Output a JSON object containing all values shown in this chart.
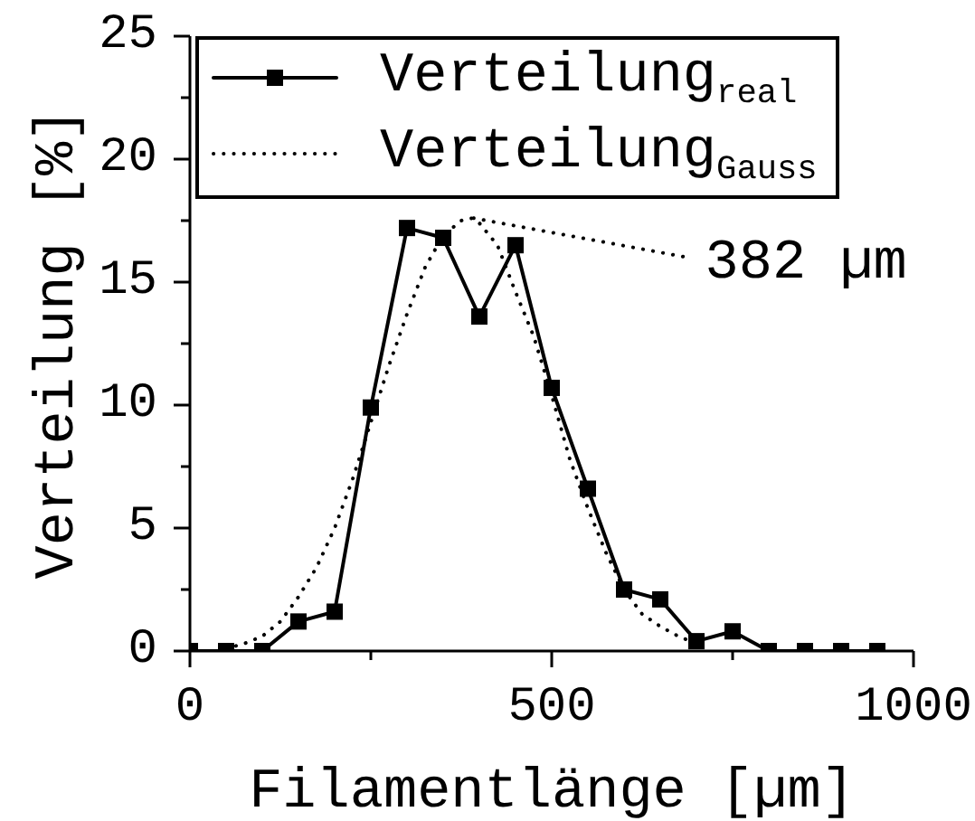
{
  "chart_data": {
    "type": "line",
    "xlabel": "Filamentlänge [µm]",
    "ylabel": "Verteilung [%]",
    "xlim": [
      0,
      1000
    ],
    "xticks": [
      0,
      {
        "value": 250,
        "label": null
      },
      500,
      {
        "value": 750,
        "label": null
      },
      1000
    ],
    "ylim": [
      0,
      25
    ],
    "yticks": [
      0,
      {
        "value": 2.5,
        "label": null
      },
      5,
      {
        "value": 7.5,
        "label": null
      },
      10,
      {
        "value": 12.5,
        "label": null
      },
      15,
      {
        "value": 17.5,
        "label": null
      },
      20,
      {
        "value": 22.5,
        "label": null
      },
      25
    ],
    "legend": "top left",
    "series": [
      {
        "name": "Verteilung$_{real}$",
        "color": "#000000",
        "marker": "square",
        "line_style": "solid",
        "x": [
          0,
          50,
          100,
          150,
          200,
          250,
          300,
          350,
          400,
          450,
          500,
          550,
          600,
          650,
          700,
          750,
          800,
          850,
          900,
          950
        ],
        "values": [
          0,
          0,
          0,
          1.2,
          1.6,
          9.9,
          17.2,
          16.8,
          13.6,
          16.5,
          10.7,
          6.6,
          2.5,
          2.1,
          0.4,
          0.8,
          0,
          0,
          0,
          0
        ]
      },
      {
        "name": "Verteilung$_{Gauss}$",
        "color": "#000000",
        "marker": "none",
        "line_style": "dotted",
        "x": [
          50,
          75,
          100,
          125,
          150,
          175,
          200,
          225,
          250,
          275,
          300,
          325,
          350,
          375,
          390,
          400,
          425,
          450,
          475,
          500,
          525,
          550,
          575,
          600,
          625,
          650,
          675,
          700
        ],
        "values": [
          0.1,
          0.3,
          0.6,
          1.2,
          2.2,
          3.4,
          5.0,
          7.0,
          9.3,
          11.6,
          13.7,
          15.6,
          16.9,
          17.5,
          17.6,
          17.4,
          16.5,
          14.6,
          12.8,
          10.4,
          7.8,
          5.8,
          4.0,
          2.5,
          1.5,
          1.0,
          0.6,
          0.3
        ]
      }
    ],
    "annotations": [
      {
        "text": "382 µm",
        "x": 382,
        "y": 17.6
      }
    ]
  }
}
